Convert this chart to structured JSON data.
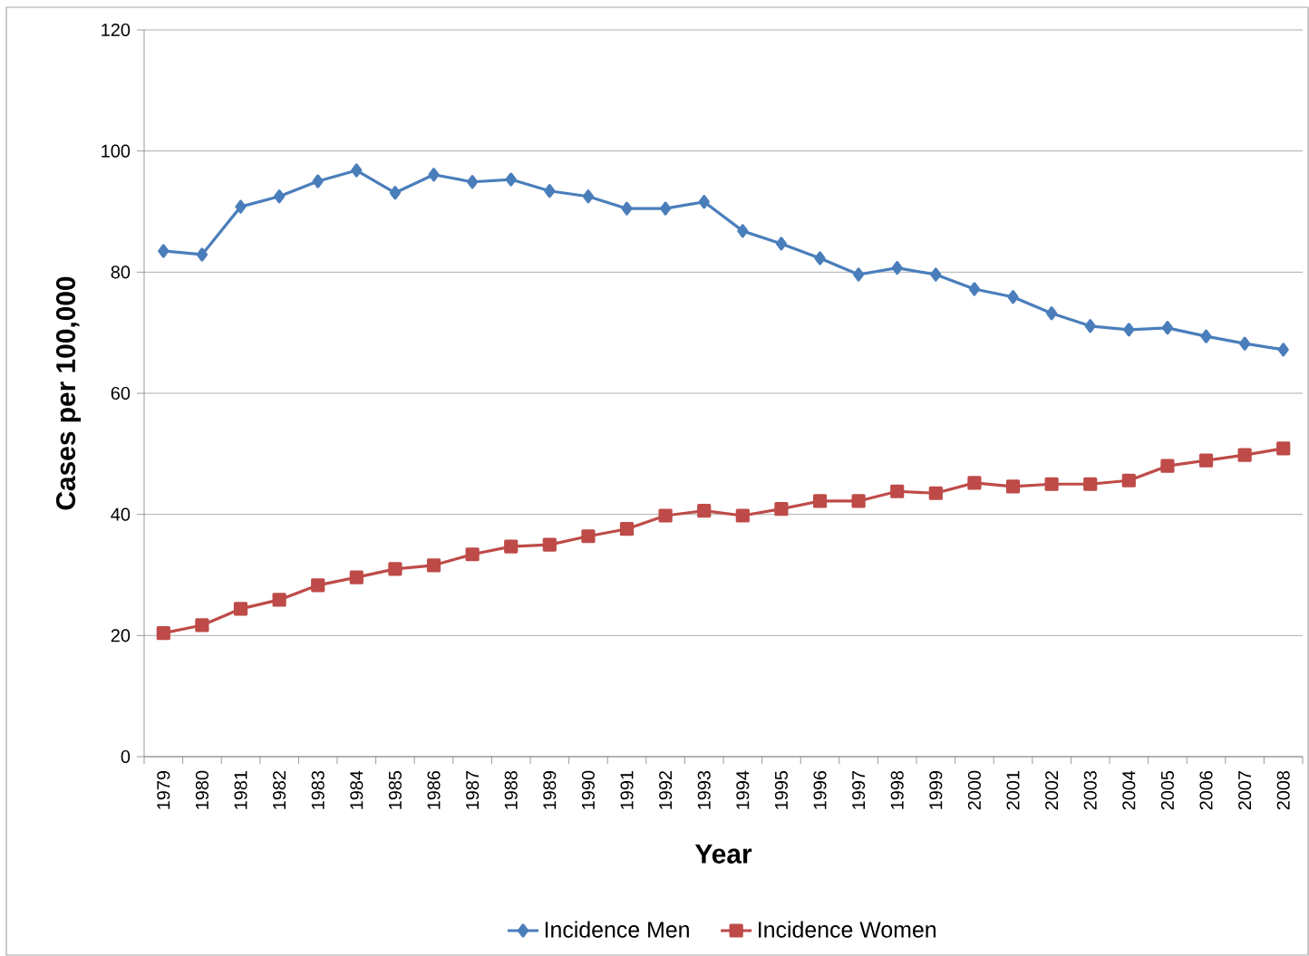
{
  "chart_data": {
    "type": "line",
    "xlabel": "Year",
    "ylabel": "Cases per 100,000",
    "categories": [
      "1979",
      "1980",
      "1981",
      "1982",
      "1983",
      "1984",
      "1985",
      "1986",
      "1987",
      "1988",
      "1989",
      "1990",
      "1991",
      "1992",
      "1993",
      "1994",
      "1995",
      "1996",
      "1997",
      "1998",
      "1999",
      "2000",
      "2001",
      "2002",
      "2003",
      "2004",
      "2005",
      "2006",
      "2007",
      "2008"
    ],
    "series": [
      {
        "name": "Incidence Men",
        "color": "#4a7ebb",
        "marker": "diamond",
        "values": [
          83.5,
          82.9,
          90.8,
          92.5,
          95.0,
          96.8,
          93.1,
          96.1,
          94.9,
          95.3,
          93.4,
          92.5,
          90.5,
          90.5,
          91.6,
          86.8,
          84.7,
          82.3,
          79.6,
          80.7,
          79.6,
          77.2,
          75.9,
          73.2,
          71.1,
          70.5,
          70.8,
          69.4,
          68.2,
          67.2
        ]
      },
      {
        "name": "Incidence Women",
        "color": "#be4b48",
        "marker": "square",
        "values": [
          20.4,
          21.7,
          24.4,
          25.9,
          28.3,
          29.6,
          31.0,
          31.6,
          33.4,
          34.7,
          35.0,
          36.4,
          37.6,
          39.8,
          40.6,
          39.8,
          40.9,
          42.2,
          42.2,
          43.8,
          43.5,
          45.2,
          44.6,
          45.0,
          45.0,
          45.6,
          48.0,
          48.9,
          49.8,
          50.9
        ]
      }
    ],
    "ylim": [
      0,
      120
    ],
    "yticks": [
      0,
      20,
      40,
      60,
      80,
      100,
      120
    ],
    "grid": "y",
    "legend": "bottom",
    "line_style": "solid"
  }
}
